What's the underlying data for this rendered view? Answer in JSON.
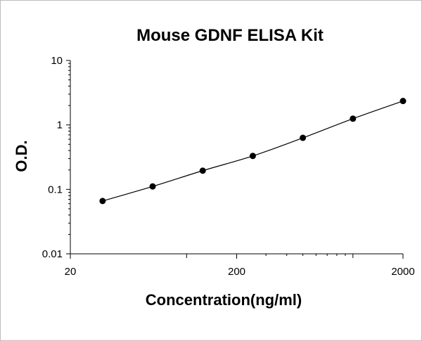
{
  "chart_data": {
    "type": "scatter",
    "title": "Mouse GDNF ELISA Kit",
    "xlabel": "Concentration(ng/ml)",
    "ylabel": "O.D.",
    "x_scale": "log",
    "y_scale": "log",
    "xlim": [
      20,
      2000
    ],
    "ylim": [
      0.01,
      10
    ],
    "x_ticks": [
      20,
      200,
      2000
    ],
    "x_tick_labels": [
      "20",
      "200",
      "2000"
    ],
    "y_ticks": [
      0.01,
      0.1,
      1,
      10
    ],
    "y_tick_labels": [
      "0.01",
      "0.1",
      "1",
      "10"
    ],
    "grid": false,
    "legend": "none",
    "series": [
      {
        "x": [
          31.25,
          62.5,
          125,
          250,
          500,
          1000,
          2000
        ],
        "y": [
          0.066,
          0.111,
          0.195,
          0.33,
          0.63,
          1.25,
          2.35
        ],
        "marker": "circle",
        "fit_line": true,
        "color": "#000000"
      }
    ]
  }
}
